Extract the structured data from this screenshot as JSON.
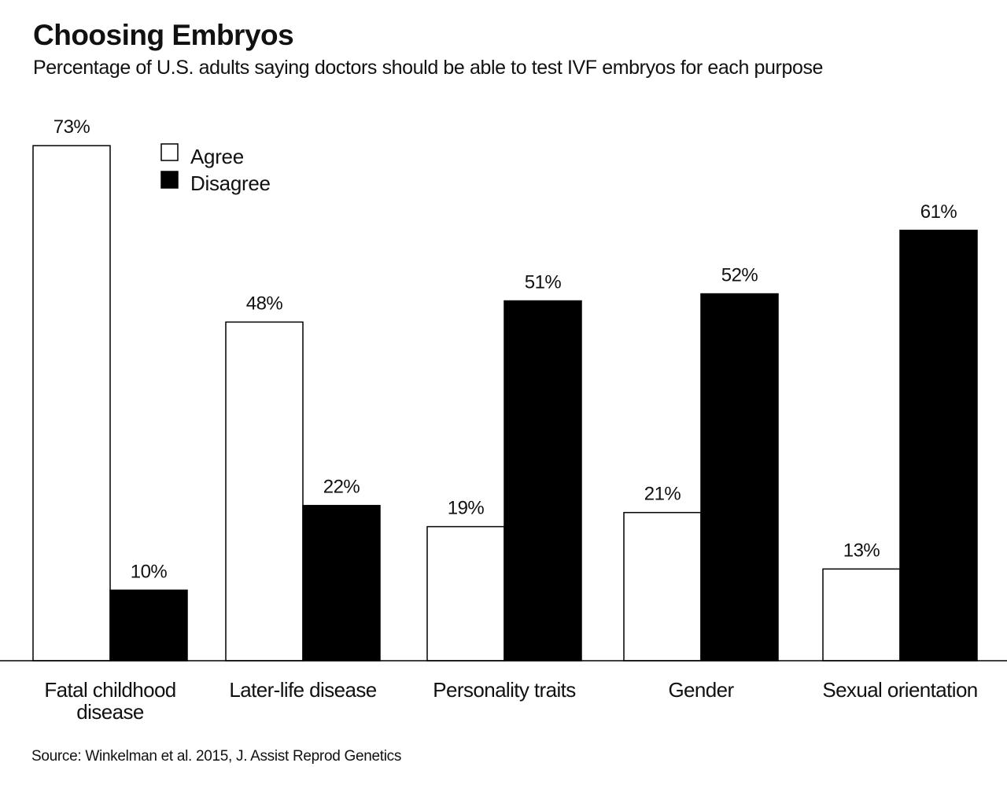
{
  "header": {
    "title": "Choosing Embryos",
    "subtitle": "Percentage of U.S. adults saying doctors should be able to test IVF embryos for each purpose"
  },
  "footer": {
    "source": "Source: Winkelman et al. 2015, J. Assist Reprod Genetics"
  },
  "colors": {
    "agree_fill": "#ffffff",
    "disagree_fill": "#000000",
    "stroke": "#000000"
  },
  "chart_data": {
    "type": "bar",
    "title": "Choosing Embryos",
    "subtitle": "Percentage of U.S. adults saying doctors should be able to test IVF embryos for each purpose",
    "xlabel": "",
    "ylabel": "",
    "ylim": [
      0,
      75
    ],
    "grid": false,
    "legend_position": "top-left",
    "value_suffix": "%",
    "categories": [
      [
        "Fatal childhood",
        "disease"
      ],
      [
        "Later-life disease"
      ],
      [
        "Personality traits"
      ],
      [
        "Gender"
      ],
      [
        "Sexual orientation"
      ]
    ],
    "series": [
      {
        "name": "Agree",
        "values": [
          73,
          48,
          19,
          21,
          13
        ]
      },
      {
        "name": "Disagree",
        "values": [
          10,
          22,
          51,
          52,
          61
        ]
      }
    ]
  }
}
